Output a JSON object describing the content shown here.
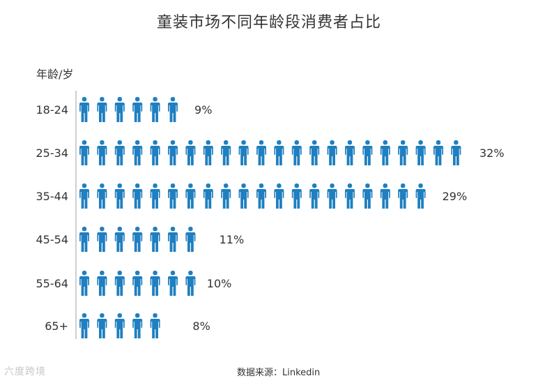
{
  "chart_data": {
    "type": "bar",
    "title": "童装市场不同年龄段消费者占比",
    "ylabel": "年龄/岁",
    "categories": [
      "18-24",
      "25-34",
      "35-44",
      "45-54",
      "55-64",
      "65+"
    ],
    "values": [
      9,
      32,
      29,
      11,
      10,
      8
    ],
    "value_labels": [
      "9%",
      "32%",
      "29%",
      "11%",
      "10%",
      "8%"
    ],
    "unit": "%",
    "bar_style": "pictogram-person",
    "bar_color": "#1f7fc0"
  },
  "source": "数据来源：Linkedin",
  "watermark": "六度跨境"
}
